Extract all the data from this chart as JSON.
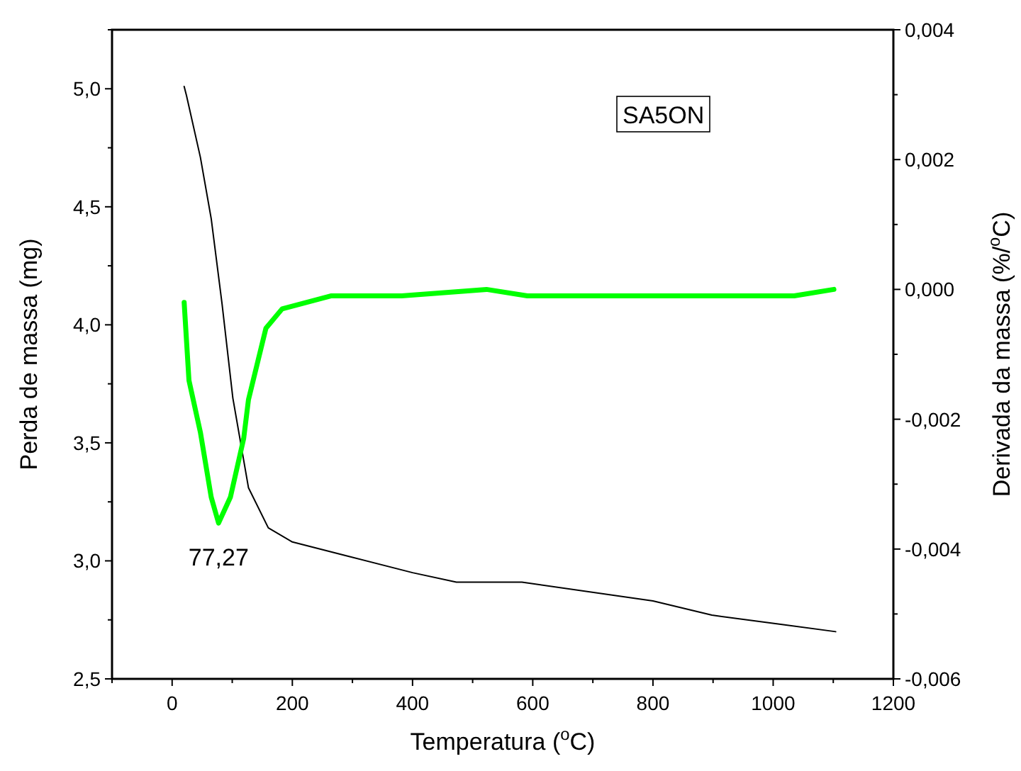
{
  "chart_data": {
    "type": "line",
    "xlabel": "Temperatura ($^{o}$C)",
    "ylabel": "Perda de massa (mg)",
    "y2label": "Derivada da massa (%/$^{o}$C)",
    "xlim": [
      -100,
      1200
    ],
    "xticks": [
      {
        "value": -100,
        "label": null
      },
      0,
      {
        "value": 100,
        "label": null
      },
      200,
      {
        "value": 300,
        "label": null
      },
      400,
      {
        "value": 500,
        "label": null
      },
      600,
      {
        "value": 700,
        "label": null
      },
      800,
      {
        "value": 900,
        "label": null
      },
      1000,
      {
        "value": 1100,
        "label": null
      },
      1200
    ],
    "ylim": [
      2.5,
      5.25
    ],
    "yticks": [
      {
        "value": 2.5,
        "label": "2,5"
      },
      {
        "value": 2.75,
        "label": null
      },
      {
        "value": 3.0,
        "label": "3,0"
      },
      {
        "value": 3.25,
        "label": null
      },
      {
        "value": 3.5,
        "label": "3,5"
      },
      {
        "value": 3.75,
        "label": null
      },
      {
        "value": 4.0,
        "label": "4,0"
      },
      {
        "value": 4.25,
        "label": null
      },
      {
        "value": 4.5,
        "label": "4,5"
      },
      {
        "value": 4.75,
        "label": null
      },
      {
        "value": 5.0,
        "label": "5,0"
      },
      {
        "value": 5.25,
        "label": null
      }
    ],
    "y2lim": [
      -0.006,
      0.004
    ],
    "y2ticks": [
      {
        "value": -0.006,
        "label": "-0,006"
      },
      {
        "value": -0.005,
        "label": null
      },
      {
        "value": -0.004,
        "label": "-0,004"
      },
      {
        "value": -0.003,
        "label": null
      },
      {
        "value": -0.002,
        "label": "-0,002"
      },
      {
        "value": -0.001,
        "label": null
      },
      {
        "value": 0.0,
        "label": "0,000"
      },
      {
        "value": 0.001,
        "label": null
      },
      {
        "value": 0.002,
        "label": "0,002"
      },
      {
        "value": 0.003,
        "label": null
      },
      {
        "value": 0.004,
        "label": "0,004"
      }
    ],
    "grid": false,
    "marker": "none",
    "line_style": "solid",
    "series": [
      {
        "color": "#000000",
        "x": [
          20,
          24,
          47,
          65,
          83,
          101,
          127,
          160,
          200,
          292,
          400,
          473,
          582,
          800,
          898,
          1017,
          1104
        ],
        "values": [
          5.01,
          4.97,
          4.71,
          4.45,
          4.09,
          3.69,
          3.31,
          3.14,
          3.08,
          3.02,
          2.95,
          2.91,
          2.91,
          2.83,
          2.77,
          2.73,
          2.7
        ]
      },
      {
        "color": "#00ff00",
        "axis": "y2",
        "x": [
          20,
          24,
          28,
          47,
          65,
          77.27,
          97,
          119,
          127,
          156,
          183,
          264,
          328,
          382,
          523,
          591,
          717,
          854,
          945,
          1035,
          1101
        ],
        "values": [
          -0.0002,
          -0.0008,
          -0.0014,
          -0.0022,
          -0.0032,
          -0.0036,
          -0.0032,
          -0.0023,
          -0.0017,
          -0.0006,
          -0.0003,
          -0.0001,
          -0.0001,
          -0.0001,
          0.0,
          -0.0001,
          -0.0001,
          -0.0001,
          -0.0001,
          -0.0001,
          0.0
        ]
      }
    ],
    "annotations": [
      "SA5ON",
      "77,27"
    ]
  }
}
